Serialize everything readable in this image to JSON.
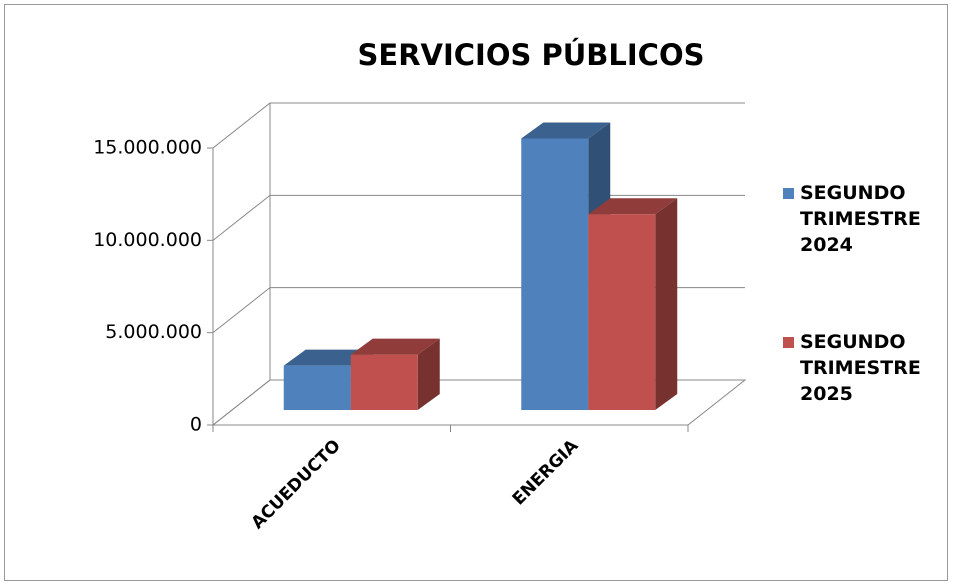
{
  "chart_data": {
    "type": "bar3d",
    "title": "SERVICIOS PÚBLICOS",
    "categories": [
      "ACUEDUCTO",
      "ENERGIA"
    ],
    "series": [
      {
        "name": "SEGUNDO TRIMESTRE 2024",
        "color": "#4f81bd",
        "values": [
          2400000,
          14700000
        ]
      },
      {
        "name": "SEGUNDO TRIMESTRE 2025",
        "color": "#c0504d",
        "values": [
          3000000,
          10600000
        ]
      }
    ],
    "ylim": [
      0,
      15000000
    ],
    "yticks": [
      0,
      {
        "value": 5000000,
        "label": "5.000.000"
      },
      {
        "value": 10000000,
        "label": "10.000.000"
      },
      {
        "value": 15000000,
        "label": "15.000.000"
      }
    ],
    "grid": true,
    "legend": "right"
  }
}
